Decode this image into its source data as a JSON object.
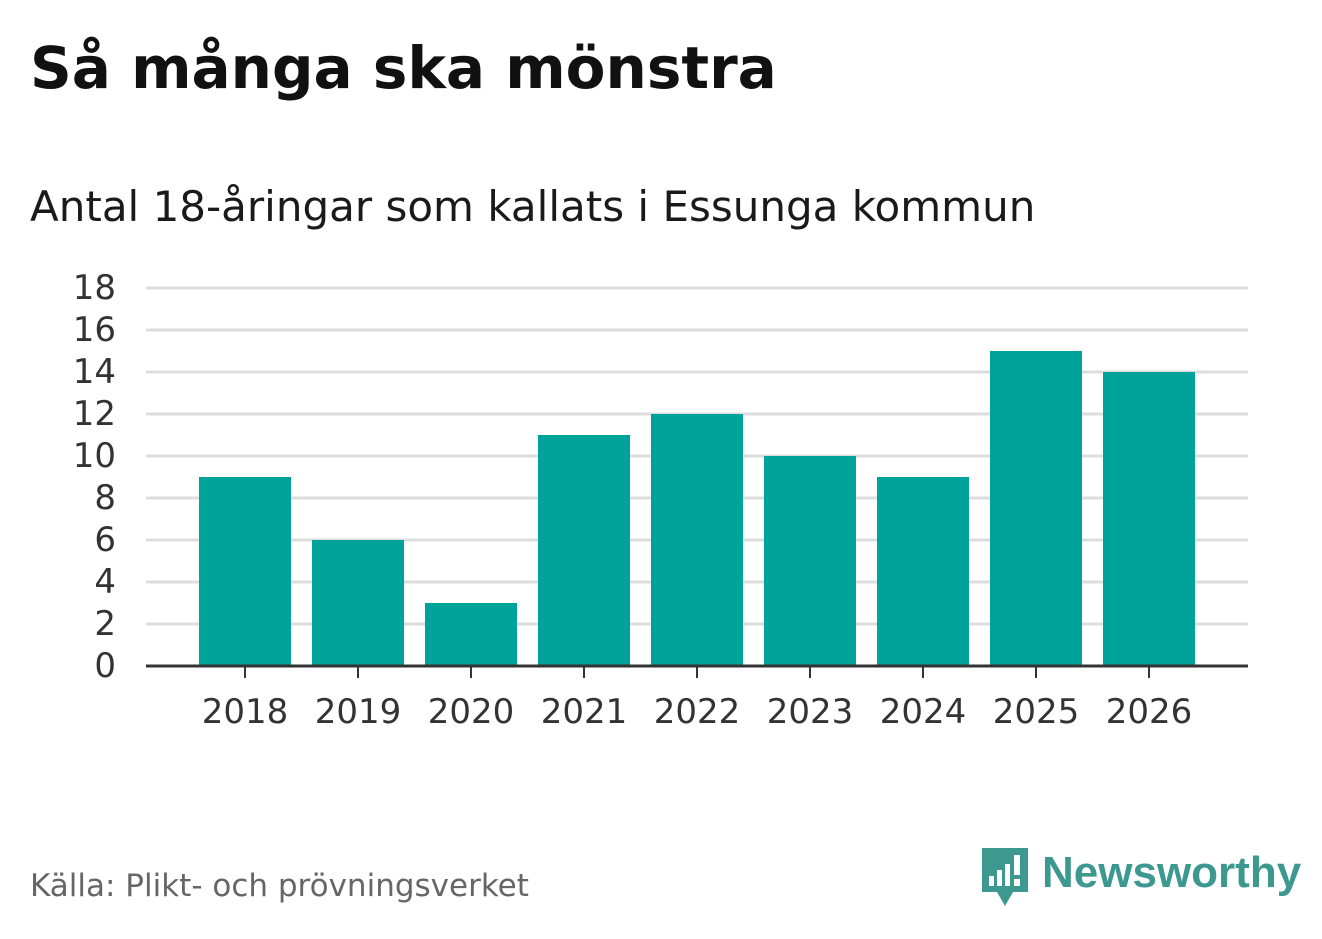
{
  "header": {
    "title": "Så många ska mönstra",
    "subtitle": "Antal 18-åringar som kallats i Essunga kommun"
  },
  "footer": {
    "source": "Källa: Plikt- och prövningsverket",
    "brand": "Newsworthy",
    "brand_icon": "newsworthy-logo-icon"
  },
  "colors": {
    "bar": "#00a39a",
    "grid": "#dddddd",
    "axis": "#333333",
    "brand": "#3d9990"
  },
  "chart_data": {
    "type": "bar",
    "title": "Så många ska mönstra",
    "subtitle": "Antal 18-åringar som kallats i Essunga kommun",
    "xlabel": "",
    "ylabel": "",
    "categories": [
      "2018",
      "2019",
      "2020",
      "2021",
      "2022",
      "2023",
      "2024",
      "2025",
      "2026"
    ],
    "values": [
      9,
      6,
      3,
      11,
      12,
      10,
      9,
      15,
      14
    ],
    "ylim": [
      0,
      18
    ],
    "yticks": [
      "0",
      "2",
      "4",
      "6",
      "8",
      "10",
      "12",
      "14",
      "16",
      "18"
    ],
    "grid": true,
    "legend": "none"
  }
}
